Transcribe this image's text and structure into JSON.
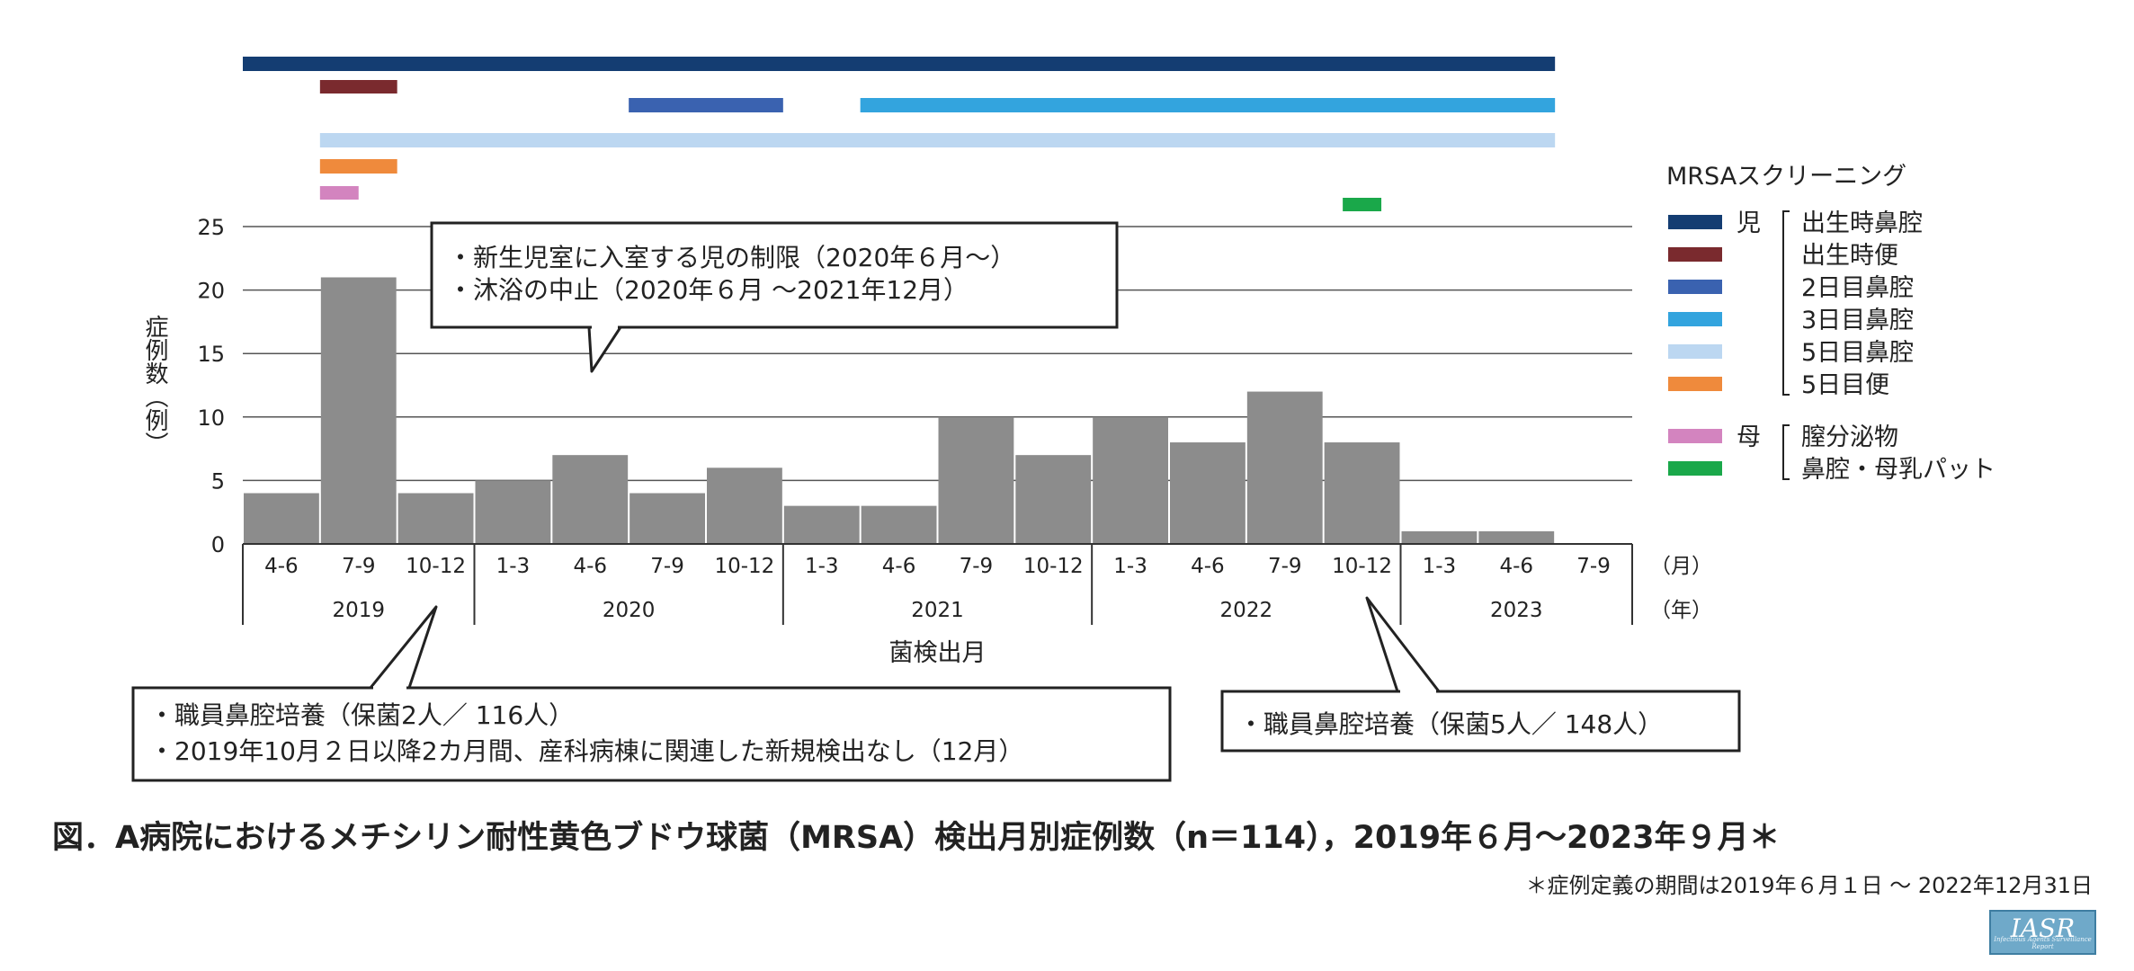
{
  "chart_data": {
    "type": "bar",
    "ylabel": "症例数（例）",
    "xlabel": "菌検出月",
    "ylim": [
      0,
      25
    ],
    "yticks": [
      0,
      5,
      10,
      15,
      20,
      25
    ],
    "month_unit": "（月）",
    "year_unit": "（年）",
    "categories": [
      {
        "year": "2019",
        "months": "4-6",
        "value": 4
      },
      {
        "year": "2019",
        "months": "7-9",
        "value": 21
      },
      {
        "year": "2019",
        "months": "10-12",
        "value": 4
      },
      {
        "year": "2020",
        "months": "1-3",
        "value": 5
      },
      {
        "year": "2020",
        "months": "4-6",
        "value": 7
      },
      {
        "year": "2020",
        "months": "7-9",
        "value": 4
      },
      {
        "year": "2020",
        "months": "10-12",
        "value": 6
      },
      {
        "year": "2021",
        "months": "1-3",
        "value": 3
      },
      {
        "year": "2021",
        "months": "4-6",
        "value": 3
      },
      {
        "year": "2021",
        "months": "7-9",
        "value": 10
      },
      {
        "year": "2021",
        "months": "10-12",
        "value": 7
      },
      {
        "year": "2022",
        "months": "1-3",
        "value": 10
      },
      {
        "year": "2022",
        "months": "4-6",
        "value": 8
      },
      {
        "year": "2022",
        "months": "7-9",
        "value": 12
      },
      {
        "year": "2022",
        "months": "10-12",
        "value": 8
      },
      {
        "year": "2023",
        "months": "1-3",
        "value": 1
      },
      {
        "year": "2023",
        "months": "4-6",
        "value": 1
      },
      {
        "year": "2023",
        "months": "7-9",
        "value": 0
      }
    ],
    "years": [
      "2019",
      "2020",
      "2021",
      "2022",
      "2023"
    ],
    "grid": true,
    "bar_color": "#8c8c8c",
    "screening_periods": [
      {
        "color": "#143d72",
        "start_category": 0,
        "end_category": 17
      },
      {
        "color": "#7a2a2e",
        "start_category": 1,
        "end_category": 2
      },
      {
        "color": "#3a62b0",
        "start_category": 5,
        "end_category": 7
      },
      {
        "color": "#33a4de",
        "start_category": 8,
        "end_category": 17
      },
      {
        "color": "#bcd7f1",
        "start_category": 1,
        "end_category": 17
      },
      {
        "color": "#ef8a3c",
        "start_category": 1,
        "end_category": 2
      },
      {
        "color": "#d384bf",
        "start_category": 1,
        "end_category": 1.5
      },
      {
        "color": "#1aa84a",
        "start_category": 14.25,
        "end_category": 14.75
      }
    ],
    "legend": {
      "title": "MRSAスクリーニング",
      "placement": "right",
      "groups": [
        {
          "label": "児",
          "items": [
            {
              "name": "出生時鼻腔",
              "color": "#143d72"
            },
            {
              "name": "出生時便",
              "color": "#7a2a2e"
            },
            {
              "name": "2日目鼻腔",
              "color": "#3a62b0"
            },
            {
              "name": "3日目鼻腔",
              "color": "#33a4de"
            },
            {
              "name": "5日目鼻腔",
              "color": "#bcd7f1"
            },
            {
              "name": "5日目便",
              "color": "#ef8a3c"
            }
          ]
        },
        {
          "label": "母",
          "items": [
            {
              "name": "膣分泌物",
              "color": "#d384bf"
            },
            {
              "name": "鼻腔・母乳パット",
              "color": "#1aa84a"
            }
          ]
        }
      ]
    },
    "annotations": [
      {
        "lines": [
          "・新生児室に入室する児の制限（2020年６月～）",
          "・沐浴の中止（2020年６月 ～2021年12月）"
        ]
      },
      {
        "lines": [
          "・職員鼻腔培養（保菌2人／ 116人）",
          "・2019年10月２日以降2カ月間、産科病棟に関連した新規検出なし（12月）"
        ]
      },
      {
        "lines": [
          "・職員鼻腔培養（保菌5人／ 148人）"
        ]
      }
    ]
  },
  "caption": {
    "title": "図．A病院におけるメチシリン耐性黄色ブドウ球菌（MRSA）検出月別症例数（n＝114），2019年６月～2023年９月＊",
    "footnote": "＊症例定義の期間は2019年６月１日 ～ 2022年12月31日"
  },
  "logo": {
    "text": "IASR",
    "subtitle": "Infectious Agents Surveillance Report"
  }
}
